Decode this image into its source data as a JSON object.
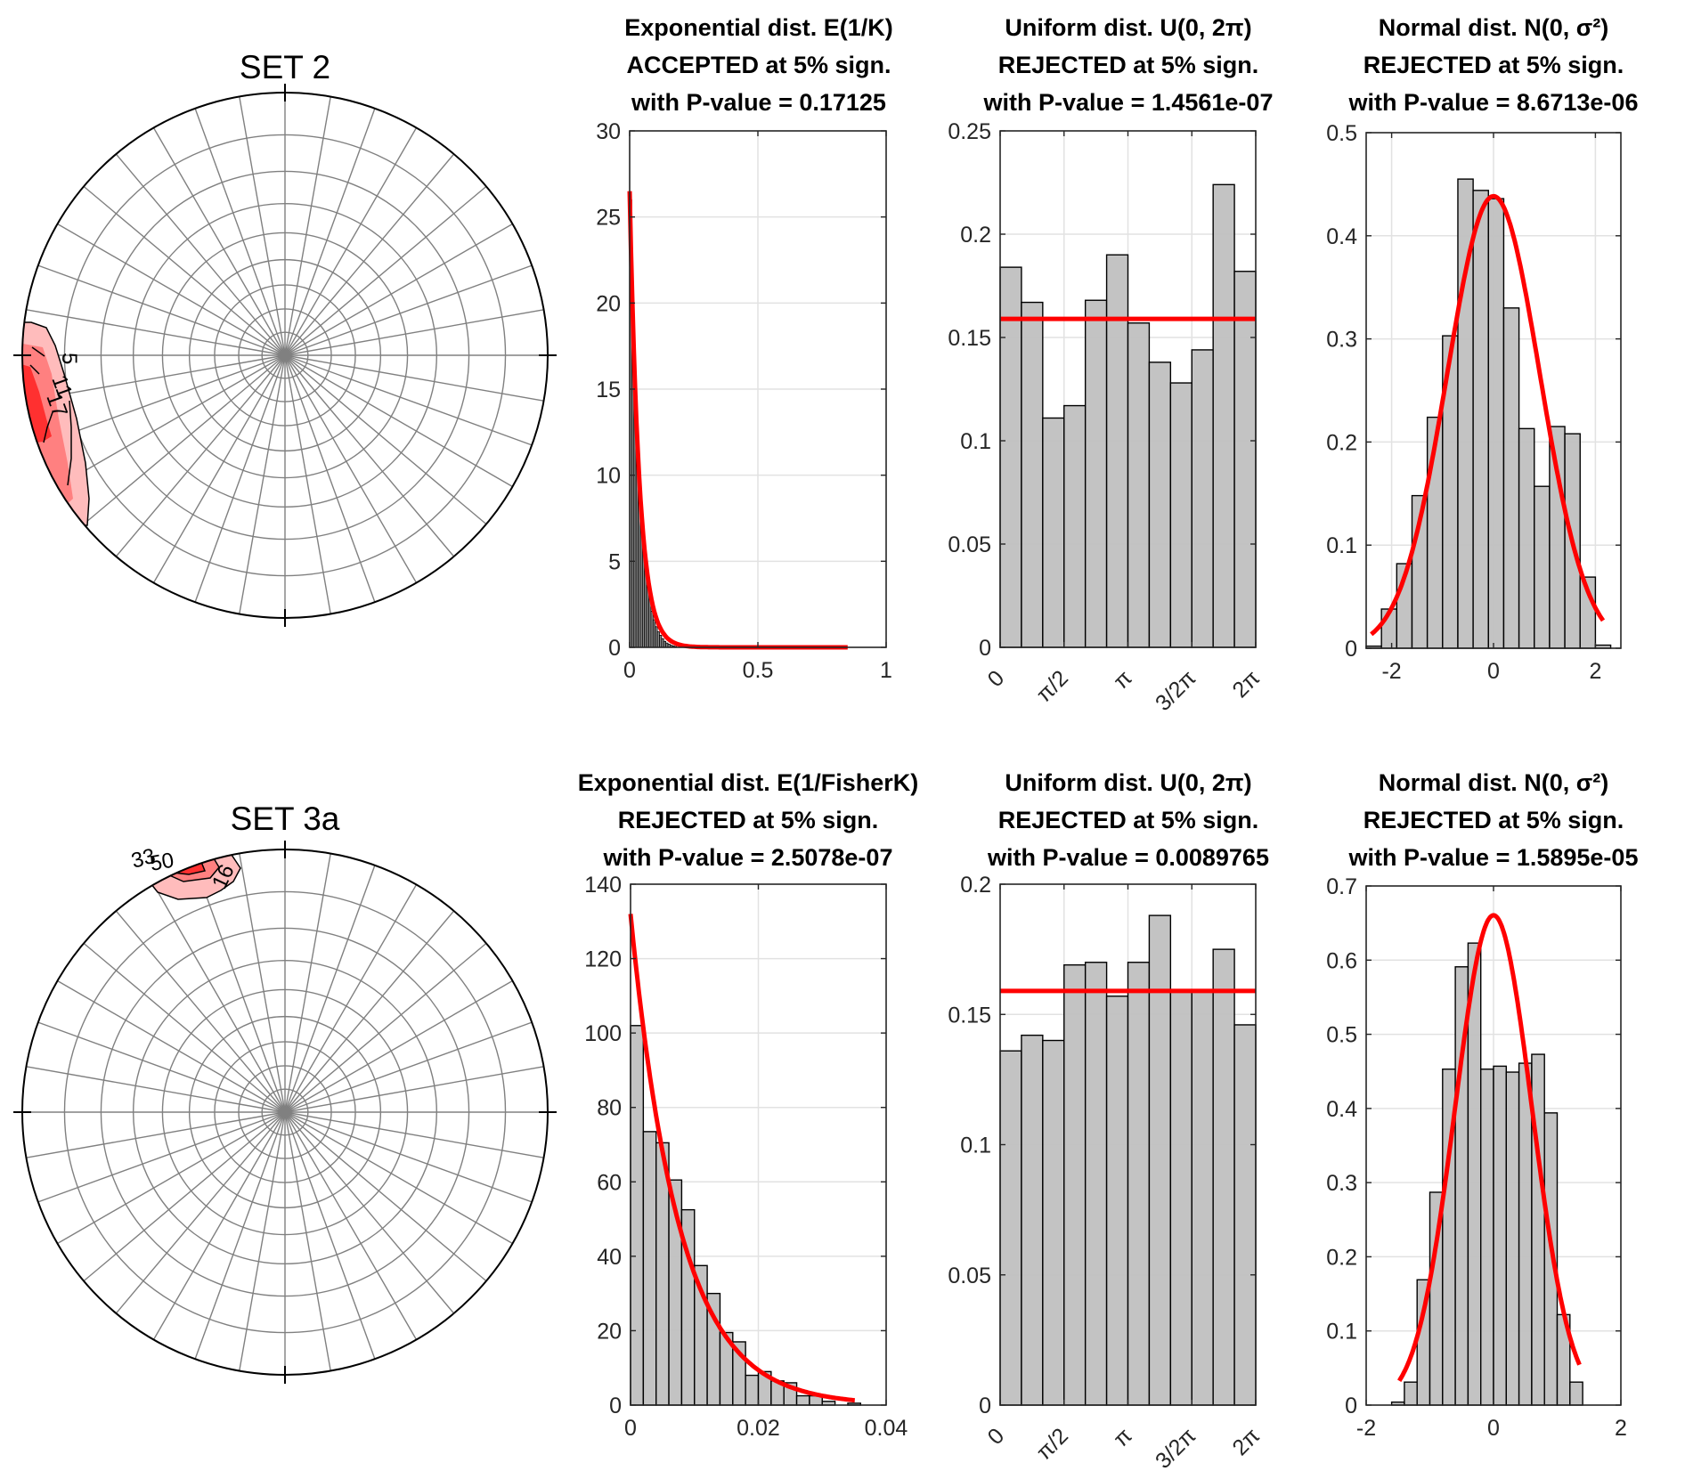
{
  "figure": {
    "stereonets": [
      {
        "title": "SET 2",
        "contour_labels": [
          "5",
          "11",
          "17"
        ],
        "cluster_location": "west (left edge)"
      },
      {
        "title": "SET 3a",
        "contour_labels": [
          "16",
          "33",
          "50"
        ],
        "cluster_location": "north-northwest (top edge)"
      }
    ],
    "colors": {
      "fit_line": "#ff0000",
      "bar_fill": "#c0c0c0",
      "bar_edge": "#000000",
      "contour_low": "#ffbcbc",
      "contour_mid": "#ff8080",
      "contour_high": "#ff3030",
      "grid": "#808080"
    }
  },
  "chart_data": [
    {
      "type": "bar",
      "id": "set2-exponential",
      "title_lines": [
        "Exponential dist. E(1/K)",
        "ACCEPTED at 5% sign.",
        "with P-value = 0.17125"
      ],
      "xlim": [
        0,
        1
      ],
      "ylim": [
        0,
        30
      ],
      "xticks": [
        0,
        0.5,
        1
      ],
      "xtick_labels": [
        "0",
        "0.5",
        "1"
      ],
      "yticks": [
        0,
        5,
        10,
        15,
        20,
        25,
        30
      ],
      "ytick_labels": [
        "0",
        "5",
        "10",
        "15",
        "20",
        "25",
        "30"
      ],
      "grid": true,
      "bin_edges_start": 0,
      "bin_width": 0.0083,
      "values": [
        26,
        20,
        16,
        12.5,
        10,
        8,
        6.2,
        4.9,
        3.6,
        2.8,
        2.1,
        1.6,
        1.2,
        0.9,
        0.7,
        0.5,
        0.35,
        0.25,
        0.18,
        0.12,
        0.08,
        0.05
      ],
      "fit": {
        "kind": "exponential",
        "rate": 26.5,
        "x_range": [
          0,
          0.85
        ]
      },
      "dark_bars": true
    },
    {
      "type": "bar",
      "id": "set2-uniform",
      "title_lines": [
        "Uniform dist. U(0, 2π)",
        "REJECTED at 5% sign.",
        "with P-value = 1.4561e-07"
      ],
      "xlim": [
        0,
        6.2832
      ],
      "ylim": [
        0,
        0.25
      ],
      "xticks": [
        0,
        1.5708,
        3.1416,
        4.7124,
        6.2832
      ],
      "xtick_labels": [
        "0",
        "π/2",
        "π",
        "3/2π",
        "2π"
      ],
      "yticks": [
        0,
        0.05,
        0.1,
        0.15,
        0.2,
        0.25
      ],
      "ytick_labels": [
        "0",
        "0.05",
        "0.1",
        "0.15",
        "0.2",
        "0.25"
      ],
      "grid": true,
      "bin_edges_start": 0,
      "bin_width": 0.5236,
      "values": [
        0.184,
        0.167,
        0.111,
        0.117,
        0.168,
        0.19,
        0.157,
        0.138,
        0.128,
        0.144,
        0.224,
        0.182
      ],
      "fit": {
        "kind": "constant",
        "value": 0.159,
        "x_range": [
          0,
          6.2832
        ]
      }
    },
    {
      "type": "bar",
      "id": "set2-normal",
      "title_lines": [
        "Normal dist. N(0, σ²)",
        "REJECTED at 5% sign.",
        "with P-value = 8.6713e-06"
      ],
      "xlim": [
        -2.5,
        2.5
      ],
      "ylim": [
        0,
        0.5
      ],
      "xticks": [
        -2,
        0,
        2
      ],
      "xtick_labels": [
        "-2",
        "0",
        "2"
      ],
      "yticks": [
        0,
        0.1,
        0.2,
        0.3,
        0.4,
        0.5
      ],
      "ytick_labels": [
        "0",
        "0.1",
        "0.2",
        "0.3",
        "0.4",
        "0.5"
      ],
      "grid": true,
      "bin_edges_start": -2.5,
      "bin_width": 0.3,
      "values": [
        0.002,
        0.038,
        0.082,
        0.148,
        0.224,
        0.303,
        0.455,
        0.444,
        0.436,
        0.33,
        0.213,
        0.157,
        0.215,
        0.208,
        0.069,
        0.003
      ],
      "fit": {
        "kind": "normal",
        "mu": 0,
        "sigma": 0.91,
        "x_range": [
          -2.4,
          2.15
        ]
      }
    },
    {
      "type": "bar",
      "id": "set3a-exponential",
      "title_lines": [
        "Exponential dist. E(1/FisherK)",
        "REJECTED at 5% sign.",
        "with P-value = 2.5078e-07"
      ],
      "xlim": [
        0,
        0.04
      ],
      "ylim": [
        0,
        140
      ],
      "xticks": [
        0,
        0.02,
        0.04
      ],
      "xtick_labels": [
        "0",
        "0.02",
        "0.04"
      ],
      "yticks": [
        0,
        20,
        40,
        60,
        80,
        100,
        120,
        140
      ],
      "ytick_labels": [
        "0",
        "20",
        "40",
        "60",
        "80",
        "100",
        "120",
        "140"
      ],
      "grid": true,
      "bin_edges_start": 0,
      "bin_width": 0.002,
      "values": [
        102,
        73.5,
        70.5,
        60.5,
        52.5,
        37.5,
        30,
        19.5,
        17,
        8,
        9,
        6.5,
        6,
        2.5,
        2.5,
        1,
        0,
        0.5
      ],
      "fit": {
        "kind": "exponential",
        "rate": 132,
        "x_range": [
          0,
          0.0351
        ]
      }
    },
    {
      "type": "bar",
      "id": "set3a-uniform",
      "title_lines": [
        "Uniform dist. U(0, 2π)",
        "REJECTED at 5% sign.",
        "with P-value = 0.0089765"
      ],
      "xlim": [
        0,
        6.2832
      ],
      "ylim": [
        0,
        0.2
      ],
      "xticks": [
        0,
        1.5708,
        3.1416,
        4.7124,
        6.2832
      ],
      "xtick_labels": [
        "0",
        "π/2",
        "π",
        "3/2π",
        "2π"
      ],
      "yticks": [
        0,
        0.05,
        0.1,
        0.15,
        0.2
      ],
      "ytick_labels": [
        "0",
        "0.05",
        "0.1",
        "0.15",
        "0.2"
      ],
      "grid": true,
      "bin_edges_start": 0,
      "bin_width": 0.5236,
      "values": [
        0.136,
        0.142,
        0.14,
        0.169,
        0.17,
        0.157,
        0.17,
        0.188,
        0.159,
        0.159,
        0.175,
        0.146
      ],
      "fit": {
        "kind": "constant",
        "value": 0.159,
        "x_range": [
          0,
          6.2832
        ]
      }
    },
    {
      "type": "bar",
      "id": "set3a-normal",
      "title_lines": [
        "Normal dist. N(0, σ²)",
        "REJECTED at 5% sign.",
        "with P-value = 1.5895e-05"
      ],
      "xlim": [
        -2,
        2
      ],
      "ylim": [
        0,
        0.7
      ],
      "xticks": [
        -2,
        0,
        2
      ],
      "xtick_labels": [
        "-2",
        "0",
        "2"
      ],
      "yticks": [
        0,
        0.1,
        0.2,
        0.3,
        0.4,
        0.5,
        0.6,
        0.7
      ],
      "ytick_labels": [
        "0",
        "0.1",
        "0.2",
        "0.3",
        "0.4",
        "0.5",
        "0.6",
        "0.7"
      ],
      "grid": true,
      "bin_edges_start": -1.6,
      "bin_width": 0.2,
      "values": [
        0.004,
        0.031,
        0.169,
        0.287,
        0.453,
        0.591,
        0.623,
        0.453,
        0.457,
        0.449,
        0.461,
        0.473,
        0.394,
        0.122,
        0.031
      ],
      "fit": {
        "kind": "normal",
        "mu": 0,
        "sigma": 0.604,
        "x_range": [
          -1.48,
          1.35
        ]
      }
    }
  ]
}
